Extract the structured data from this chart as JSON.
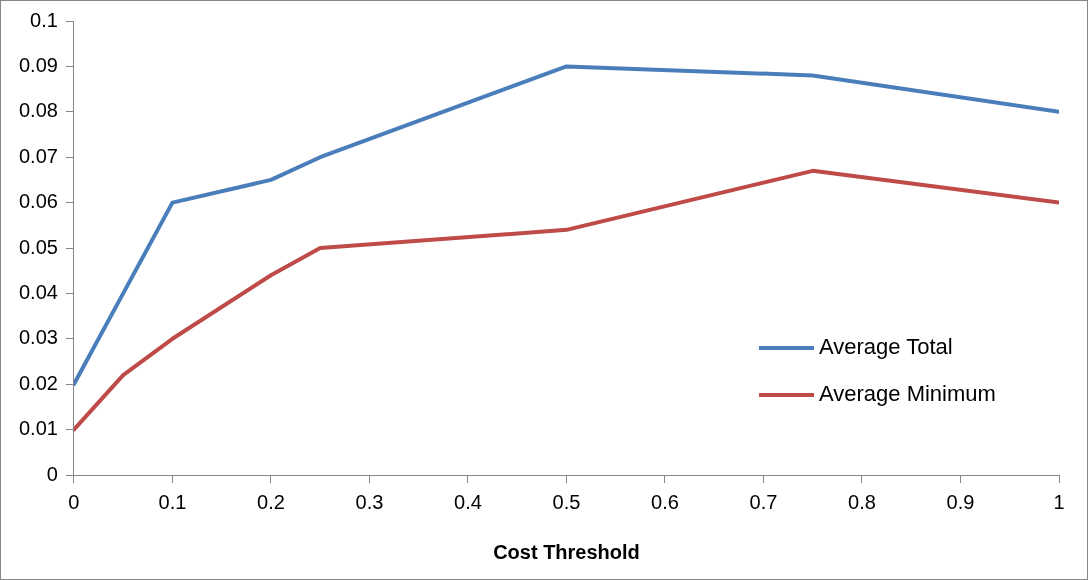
{
  "chart_data": {
    "type": "line",
    "xlabel": "Cost Threshold",
    "xlim": [
      0,
      1
    ],
    "xticks": [
      0,
      0.1,
      0.2,
      0.3,
      0.4,
      0.5,
      0.6,
      0.7,
      0.8,
      0.9,
      1
    ],
    "ylim": [
      0,
      0.1
    ],
    "yticks": [
      0,
      0.01,
      0.02,
      0.03,
      0.04,
      0.05,
      0.06,
      0.07,
      0.08,
      0.09,
      0.1
    ],
    "grid": false,
    "legend": "right",
    "marker": "none",
    "line_style": "solid",
    "series": [
      {
        "name": "Average Total",
        "color": "#4a7ebb",
        "x": [
          0,
          0.05,
          0.1,
          0.2,
          0.25,
          0.5,
          0.75,
          1
        ],
        "values": [
          0.02,
          0.04,
          0.06,
          0.065,
          0.07,
          0.09,
          0.088,
          0.08
        ]
      },
      {
        "name": "Average Minimum",
        "color": "#be4b48",
        "x": [
          0,
          0.05,
          0.1,
          0.2,
          0.25,
          0.5,
          0.75,
          1
        ],
        "values": [
          0.01,
          0.022,
          0.03,
          0.044,
          0.05,
          0.054,
          0.067,
          0.06
        ]
      }
    ]
  }
}
